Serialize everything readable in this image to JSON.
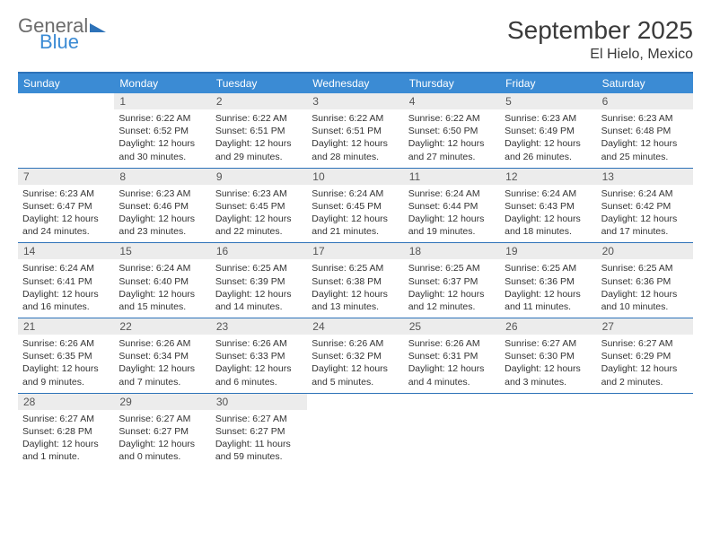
{
  "logo": {
    "text1": "General",
    "text2": "Blue"
  },
  "title": "September 2025",
  "location": "El Hielo, Mexico",
  "colors": {
    "header_bg": "#3b8bd4",
    "rule": "#2d72b8",
    "daynum_bg": "#ececec",
    "text": "#333333"
  },
  "daynames": [
    "Sunday",
    "Monday",
    "Tuesday",
    "Wednesday",
    "Thursday",
    "Friday",
    "Saturday"
  ],
  "weeks": [
    [
      {
        "n": "",
        "sr": "",
        "ss": "",
        "dl": ""
      },
      {
        "n": "1",
        "sr": "Sunrise: 6:22 AM",
        "ss": "Sunset: 6:52 PM",
        "dl": "Daylight: 12 hours and 30 minutes."
      },
      {
        "n": "2",
        "sr": "Sunrise: 6:22 AM",
        "ss": "Sunset: 6:51 PM",
        "dl": "Daylight: 12 hours and 29 minutes."
      },
      {
        "n": "3",
        "sr": "Sunrise: 6:22 AM",
        "ss": "Sunset: 6:51 PM",
        "dl": "Daylight: 12 hours and 28 minutes."
      },
      {
        "n": "4",
        "sr": "Sunrise: 6:22 AM",
        "ss": "Sunset: 6:50 PM",
        "dl": "Daylight: 12 hours and 27 minutes."
      },
      {
        "n": "5",
        "sr": "Sunrise: 6:23 AM",
        "ss": "Sunset: 6:49 PM",
        "dl": "Daylight: 12 hours and 26 minutes."
      },
      {
        "n": "6",
        "sr": "Sunrise: 6:23 AM",
        "ss": "Sunset: 6:48 PM",
        "dl": "Daylight: 12 hours and 25 minutes."
      }
    ],
    [
      {
        "n": "7",
        "sr": "Sunrise: 6:23 AM",
        "ss": "Sunset: 6:47 PM",
        "dl": "Daylight: 12 hours and 24 minutes."
      },
      {
        "n": "8",
        "sr": "Sunrise: 6:23 AM",
        "ss": "Sunset: 6:46 PM",
        "dl": "Daylight: 12 hours and 23 minutes."
      },
      {
        "n": "9",
        "sr": "Sunrise: 6:23 AM",
        "ss": "Sunset: 6:45 PM",
        "dl": "Daylight: 12 hours and 22 minutes."
      },
      {
        "n": "10",
        "sr": "Sunrise: 6:24 AM",
        "ss": "Sunset: 6:45 PM",
        "dl": "Daylight: 12 hours and 21 minutes."
      },
      {
        "n": "11",
        "sr": "Sunrise: 6:24 AM",
        "ss": "Sunset: 6:44 PM",
        "dl": "Daylight: 12 hours and 19 minutes."
      },
      {
        "n": "12",
        "sr": "Sunrise: 6:24 AM",
        "ss": "Sunset: 6:43 PM",
        "dl": "Daylight: 12 hours and 18 minutes."
      },
      {
        "n": "13",
        "sr": "Sunrise: 6:24 AM",
        "ss": "Sunset: 6:42 PM",
        "dl": "Daylight: 12 hours and 17 minutes."
      }
    ],
    [
      {
        "n": "14",
        "sr": "Sunrise: 6:24 AM",
        "ss": "Sunset: 6:41 PM",
        "dl": "Daylight: 12 hours and 16 minutes."
      },
      {
        "n": "15",
        "sr": "Sunrise: 6:24 AM",
        "ss": "Sunset: 6:40 PM",
        "dl": "Daylight: 12 hours and 15 minutes."
      },
      {
        "n": "16",
        "sr": "Sunrise: 6:25 AM",
        "ss": "Sunset: 6:39 PM",
        "dl": "Daylight: 12 hours and 14 minutes."
      },
      {
        "n": "17",
        "sr": "Sunrise: 6:25 AM",
        "ss": "Sunset: 6:38 PM",
        "dl": "Daylight: 12 hours and 13 minutes."
      },
      {
        "n": "18",
        "sr": "Sunrise: 6:25 AM",
        "ss": "Sunset: 6:37 PM",
        "dl": "Daylight: 12 hours and 12 minutes."
      },
      {
        "n": "19",
        "sr": "Sunrise: 6:25 AM",
        "ss": "Sunset: 6:36 PM",
        "dl": "Daylight: 12 hours and 11 minutes."
      },
      {
        "n": "20",
        "sr": "Sunrise: 6:25 AM",
        "ss": "Sunset: 6:36 PM",
        "dl": "Daylight: 12 hours and 10 minutes."
      }
    ],
    [
      {
        "n": "21",
        "sr": "Sunrise: 6:26 AM",
        "ss": "Sunset: 6:35 PM",
        "dl": "Daylight: 12 hours and 9 minutes."
      },
      {
        "n": "22",
        "sr": "Sunrise: 6:26 AM",
        "ss": "Sunset: 6:34 PM",
        "dl": "Daylight: 12 hours and 7 minutes."
      },
      {
        "n": "23",
        "sr": "Sunrise: 6:26 AM",
        "ss": "Sunset: 6:33 PM",
        "dl": "Daylight: 12 hours and 6 minutes."
      },
      {
        "n": "24",
        "sr": "Sunrise: 6:26 AM",
        "ss": "Sunset: 6:32 PM",
        "dl": "Daylight: 12 hours and 5 minutes."
      },
      {
        "n": "25",
        "sr": "Sunrise: 6:26 AM",
        "ss": "Sunset: 6:31 PM",
        "dl": "Daylight: 12 hours and 4 minutes."
      },
      {
        "n": "26",
        "sr": "Sunrise: 6:27 AM",
        "ss": "Sunset: 6:30 PM",
        "dl": "Daylight: 12 hours and 3 minutes."
      },
      {
        "n": "27",
        "sr": "Sunrise: 6:27 AM",
        "ss": "Sunset: 6:29 PM",
        "dl": "Daylight: 12 hours and 2 minutes."
      }
    ],
    [
      {
        "n": "28",
        "sr": "Sunrise: 6:27 AM",
        "ss": "Sunset: 6:28 PM",
        "dl": "Daylight: 12 hours and 1 minute."
      },
      {
        "n": "29",
        "sr": "Sunrise: 6:27 AM",
        "ss": "Sunset: 6:27 PM",
        "dl": "Daylight: 12 hours and 0 minutes."
      },
      {
        "n": "30",
        "sr": "Sunrise: 6:27 AM",
        "ss": "Sunset: 6:27 PM",
        "dl": "Daylight: 11 hours and 59 minutes."
      },
      {
        "n": "",
        "sr": "",
        "ss": "",
        "dl": ""
      },
      {
        "n": "",
        "sr": "",
        "ss": "",
        "dl": ""
      },
      {
        "n": "",
        "sr": "",
        "ss": "",
        "dl": ""
      },
      {
        "n": "",
        "sr": "",
        "ss": "",
        "dl": ""
      }
    ]
  ]
}
